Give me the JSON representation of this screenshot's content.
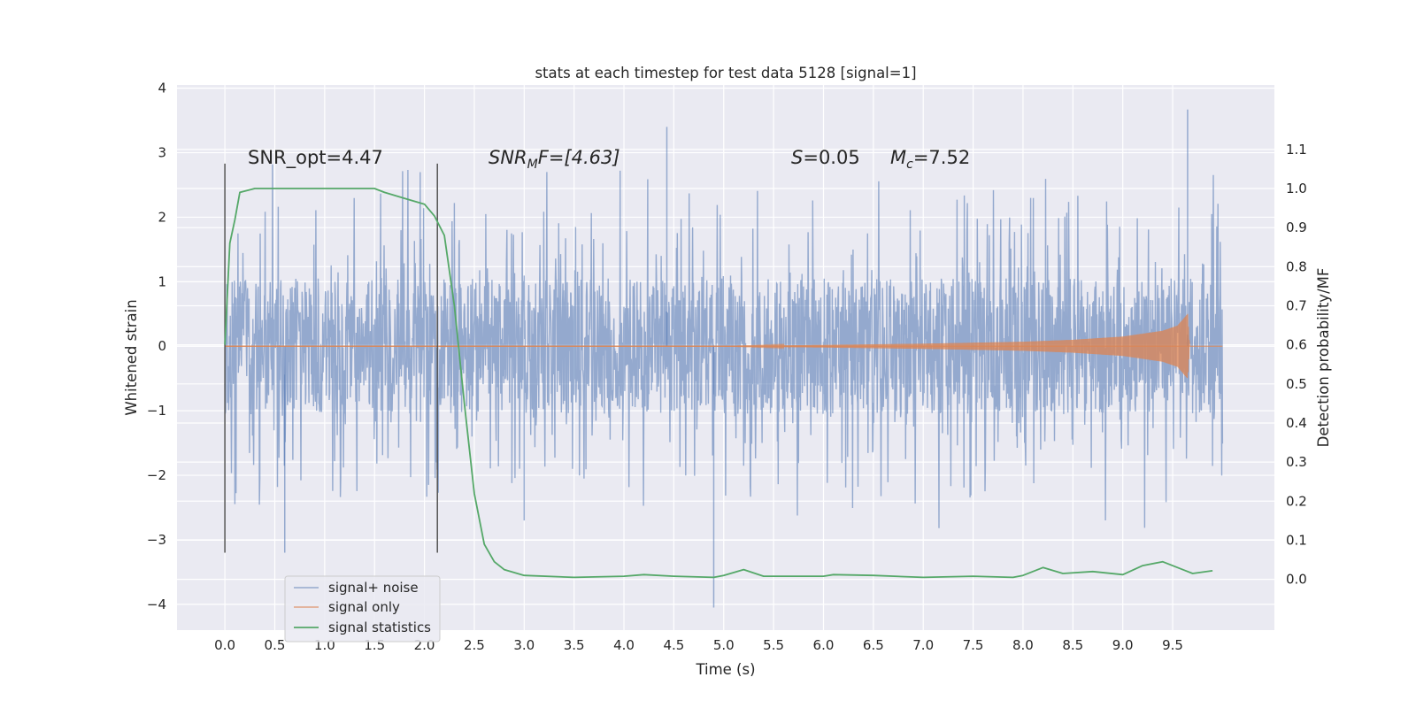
{
  "chart_data": {
    "type": "line",
    "title": "stats at each timestep for test data 5128 [signal=1]",
    "xlabel": "Time (s)",
    "ylabel": "Whitened strain",
    "y2label": "Detection probability/MF",
    "xlim": [
      -0.48,
      10.52
    ],
    "ylim": [
      -4.4,
      4.05
    ],
    "y2lim": [
      -0.13,
      1.265
    ],
    "xticks": [
      0.0,
      0.5,
      1.0,
      1.5,
      2.0,
      2.5,
      3.0,
      3.5,
      4.0,
      4.5,
      5.0,
      5.5,
      6.0,
      6.5,
      7.0,
      7.5,
      8.0,
      8.5,
      9.0,
      9.5
    ],
    "xtick_labels": [
      "0.0",
      "0.5",
      "1.0",
      "1.5",
      "2.0",
      "2.5",
      "3.0",
      "3.5",
      "4.0",
      "4.5",
      "5.0",
      "5.5",
      "6.0",
      "6.5",
      "7.0",
      "7.5",
      "8.0",
      "8.5",
      "9.0",
      "9.5"
    ],
    "yticks": [
      -4,
      -3,
      -2,
      -1,
      0,
      1,
      2,
      3,
      4
    ],
    "ytick_labels": [
      "−4",
      "−3",
      "−2",
      "−1",
      "0",
      "1",
      "2",
      "3",
      "4"
    ],
    "y2ticks": [
      0.0,
      0.1,
      0.2,
      0.3,
      0.4,
      0.5,
      0.6,
      0.7,
      0.8,
      0.9,
      1.0,
      1.1
    ],
    "y2tick_labels": [
      "0.0",
      "0.1",
      "0.2",
      "0.3",
      "0.4",
      "0.5",
      "0.6",
      "0.7",
      "0.8",
      "0.9",
      "1.0",
      "1.1"
    ],
    "grid": true,
    "legend_position": "lower-left",
    "annotations": {
      "snr_opt": "SNR_opt=4.47",
      "snr_mf_var": "SNR",
      "snr_mf_sub": "M",
      "snr_mf_rest": "F=[4.63]",
      "s_var": "S",
      "s_rest": "=0.05",
      "mc_var": "M",
      "mc_sub": "c",
      "mc_rest": "=7.52"
    },
    "vlines_x": [
      0.0,
      2.13
    ],
    "vlines_range": [
      -3.2,
      2.83
    ],
    "series": [
      {
        "name": "signal+ noise",
        "color": "#4c72b0",
        "x_range": [
          0.0,
          10.0
        ],
        "envelope_core": 1.0,
        "max_value": 3.67,
        "min_value": -4.05
      },
      {
        "name": "signal only",
        "color": "#dd8452",
        "x_range": [
          0.0,
          9.67
        ],
        "amplitude_points": [
          [
            0.0,
            0.0
          ],
          [
            5.0,
            0.0
          ],
          [
            6.0,
            0.02
          ],
          [
            7.0,
            0.04
          ],
          [
            8.0,
            0.07
          ],
          [
            8.5,
            0.1
          ],
          [
            9.0,
            0.15
          ],
          [
            9.4,
            0.24
          ],
          [
            9.55,
            0.32
          ],
          [
            9.65,
            0.5
          ],
          [
            9.67,
            0.0
          ]
        ]
      },
      {
        "name": "signal statistics",
        "color": "#55a868",
        "axis": "right",
        "points": [
          [
            0.0,
            0.6
          ],
          [
            0.05,
            0.86
          ],
          [
            0.1,
            0.92
          ],
          [
            0.15,
            0.99
          ],
          [
            0.3,
            1.0
          ],
          [
            0.5,
            1.0
          ],
          [
            1.0,
            1.0
          ],
          [
            1.5,
            1.0
          ],
          [
            1.6,
            0.99
          ],
          [
            1.8,
            0.975
          ],
          [
            2.0,
            0.96
          ],
          [
            2.1,
            0.93
          ],
          [
            2.2,
            0.88
          ],
          [
            2.3,
            0.7
          ],
          [
            2.4,
            0.45
          ],
          [
            2.5,
            0.22
          ],
          [
            2.6,
            0.09
          ],
          [
            2.7,
            0.045
          ],
          [
            2.8,
            0.025
          ],
          [
            3.0,
            0.01
          ],
          [
            3.5,
            0.005
          ],
          [
            4.0,
            0.008
          ],
          [
            4.2,
            0.012
          ],
          [
            4.5,
            0.008
          ],
          [
            4.9,
            0.005
          ],
          [
            5.0,
            0.01
          ],
          [
            5.2,
            0.025
          ],
          [
            5.4,
            0.008
          ],
          [
            6.0,
            0.008
          ],
          [
            6.1,
            0.012
          ],
          [
            6.5,
            0.01
          ],
          [
            7.0,
            0.005
          ],
          [
            7.5,
            0.008
          ],
          [
            7.9,
            0.005
          ],
          [
            8.0,
            0.01
          ],
          [
            8.2,
            0.03
          ],
          [
            8.4,
            0.015
          ],
          [
            8.7,
            0.02
          ],
          [
            9.0,
            0.012
          ],
          [
            9.2,
            0.035
          ],
          [
            9.4,
            0.045
          ],
          [
            9.6,
            0.025
          ],
          [
            9.7,
            0.015
          ],
          [
            9.9,
            0.022
          ]
        ]
      }
    ]
  }
}
